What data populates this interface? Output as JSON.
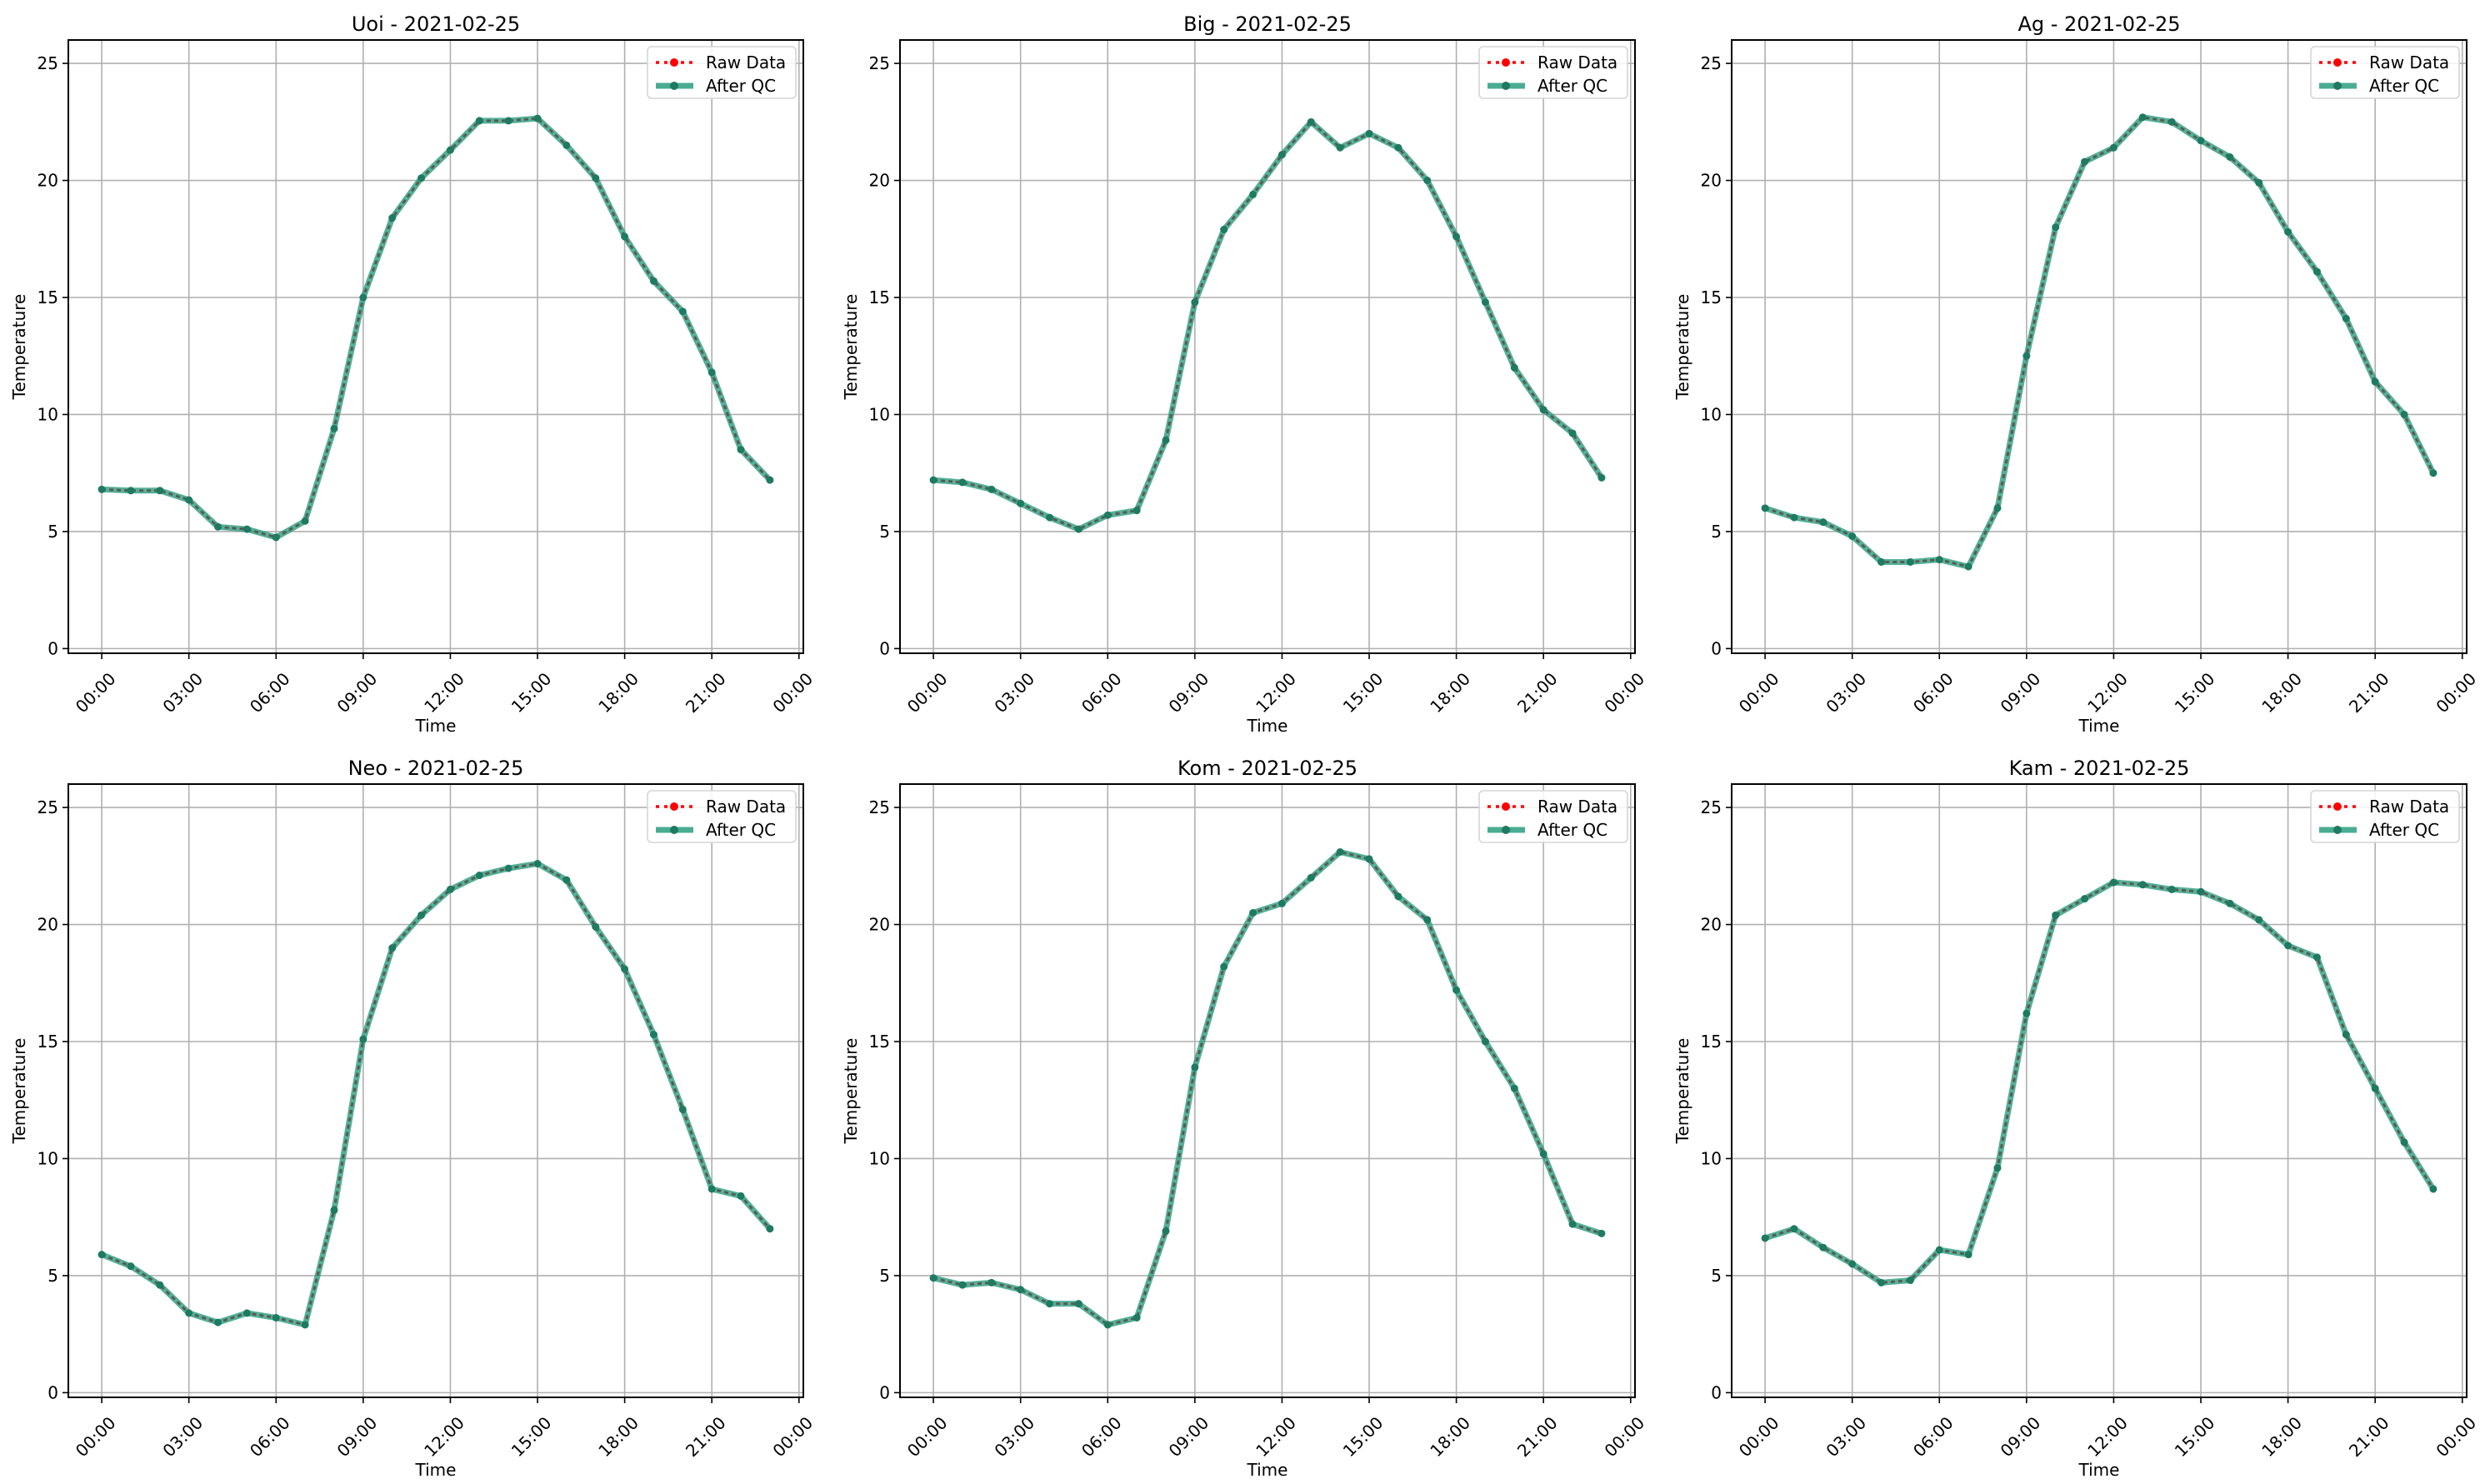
{
  "chart_data": [
    {
      "type": "line",
      "title": "Uoi - 2021-02-25",
      "xlabel": "Time",
      "ylabel": "Temperature",
      "x_hours": [
        0,
        1,
        2,
        3,
        4,
        5,
        6,
        7,
        8,
        9,
        10,
        11,
        12,
        13,
        14,
        15,
        16,
        17,
        18,
        19,
        20,
        21,
        22,
        23
      ],
      "series": [
        {
          "name": "Raw Data",
          "values": [
            6.8,
            6.75,
            6.75,
            6.35,
            5.2,
            5.1,
            4.75,
            5.45,
            9.4,
            15.0,
            18.4,
            20.1,
            21.3,
            22.55,
            22.55,
            22.65,
            21.5,
            20.1,
            17.6,
            15.7,
            14.4,
            11.8,
            8.5,
            7.2
          ]
        },
        {
          "name": "After QC",
          "values": [
            6.8,
            6.75,
            6.75,
            6.35,
            5.2,
            5.1,
            4.75,
            5.45,
            9.4,
            15.0,
            18.4,
            20.1,
            21.3,
            22.55,
            22.55,
            22.65,
            21.5,
            20.1,
            17.6,
            15.7,
            14.4,
            11.8,
            8.5,
            7.2
          ]
        }
      ]
    },
    {
      "type": "line",
      "title": "Big - 2021-02-25",
      "xlabel": "Time",
      "ylabel": "Temperature",
      "x_hours": [
        0,
        1,
        2,
        3,
        4,
        5,
        6,
        7,
        8,
        9,
        10,
        11,
        12,
        13,
        14,
        15,
        16,
        17,
        18,
        19,
        20,
        21,
        22,
        23
      ],
      "series": [
        {
          "name": "Raw Data",
          "values": [
            7.2,
            7.1,
            6.8,
            6.2,
            5.6,
            5.1,
            5.7,
            5.9,
            8.9,
            14.8,
            17.9,
            19.4,
            21.1,
            22.5,
            21.4,
            22.0,
            21.4,
            20.0,
            17.6,
            14.8,
            12.0,
            10.2,
            9.2,
            7.3
          ]
        },
        {
          "name": "After QC",
          "values": [
            7.2,
            7.1,
            6.8,
            6.2,
            5.6,
            5.1,
            5.7,
            5.9,
            8.9,
            14.8,
            17.9,
            19.4,
            21.1,
            22.5,
            21.4,
            22.0,
            21.4,
            20.0,
            17.6,
            14.8,
            12.0,
            10.2,
            9.2,
            7.3
          ]
        }
      ]
    },
    {
      "type": "line",
      "title": "Ag - 2021-02-25",
      "xlabel": "Time",
      "ylabel": "Temperature",
      "x_hours": [
        0,
        1,
        2,
        3,
        4,
        5,
        6,
        7,
        8,
        9,
        10,
        11,
        12,
        13,
        14,
        15,
        16,
        17,
        18,
        19,
        20,
        21,
        22,
        23
      ],
      "series": [
        {
          "name": "Raw Data",
          "values": [
            6.0,
            5.6,
            5.4,
            4.8,
            3.7,
            3.7,
            3.8,
            3.5,
            6.0,
            12.5,
            18.0,
            20.8,
            21.4,
            22.7,
            22.5,
            21.7,
            21.0,
            19.9,
            17.8,
            16.1,
            14.1,
            11.4,
            10.0,
            7.5
          ]
        },
        {
          "name": "After QC",
          "values": [
            6.0,
            5.6,
            5.4,
            4.8,
            3.7,
            3.7,
            3.8,
            3.5,
            6.0,
            12.5,
            18.0,
            20.8,
            21.4,
            22.7,
            22.5,
            21.7,
            21.0,
            19.9,
            17.8,
            16.1,
            14.1,
            11.4,
            10.0,
            7.5
          ]
        }
      ]
    },
    {
      "type": "line",
      "title": "Neo - 2021-02-25",
      "xlabel": "Time",
      "ylabel": "Temperature",
      "x_hours": [
        0,
        1,
        2,
        3,
        4,
        5,
        6,
        7,
        8,
        9,
        10,
        11,
        12,
        13,
        14,
        15,
        16,
        17,
        18,
        19,
        20,
        21,
        22,
        23
      ],
      "series": [
        {
          "name": "Raw Data",
          "values": [
            5.9,
            5.4,
            4.6,
            3.4,
            3.0,
            3.4,
            3.2,
            2.9,
            7.8,
            15.1,
            19.0,
            20.4,
            21.5,
            22.1,
            22.4,
            22.6,
            21.9,
            19.9,
            18.1,
            15.3,
            12.1,
            8.7,
            8.4,
            7.0
          ]
        },
        {
          "name": "After QC",
          "values": [
            5.9,
            5.4,
            4.6,
            3.4,
            3.0,
            3.4,
            3.2,
            2.9,
            7.8,
            15.1,
            19.0,
            20.4,
            21.5,
            22.1,
            22.4,
            22.6,
            21.9,
            19.9,
            18.1,
            15.3,
            12.1,
            8.7,
            8.4,
            7.0
          ]
        }
      ]
    },
    {
      "type": "line",
      "title": "Kom - 2021-02-25",
      "xlabel": "Time",
      "ylabel": "Temperature",
      "x_hours": [
        0,
        1,
        2,
        3,
        4,
        5,
        6,
        7,
        8,
        9,
        10,
        11,
        12,
        13,
        14,
        15,
        16,
        17,
        18,
        19,
        20,
        21,
        22,
        23
      ],
      "series": [
        {
          "name": "Raw Data",
          "values": [
            4.9,
            4.6,
            4.7,
            4.4,
            3.8,
            3.8,
            2.9,
            3.2,
            6.9,
            13.9,
            18.2,
            20.5,
            20.9,
            22.0,
            23.1,
            22.8,
            21.2,
            20.2,
            17.2,
            15.0,
            13.0,
            10.2,
            7.2,
            6.8
          ]
        },
        {
          "name": "After QC",
          "values": [
            4.9,
            4.6,
            4.7,
            4.4,
            3.8,
            3.8,
            2.9,
            3.2,
            6.9,
            13.9,
            18.2,
            20.5,
            20.9,
            22.0,
            23.1,
            22.8,
            21.2,
            20.2,
            17.2,
            15.0,
            13.0,
            10.2,
            7.2,
            6.8
          ]
        }
      ]
    },
    {
      "type": "line",
      "title": "Kam - 2021-02-25",
      "xlabel": "Time",
      "ylabel": "Temperature",
      "x_hours": [
        0,
        1,
        2,
        3,
        4,
        5,
        6,
        7,
        8,
        9,
        10,
        11,
        12,
        13,
        14,
        15,
        16,
        17,
        18,
        19,
        20,
        21,
        22,
        23
      ],
      "series": [
        {
          "name": "Raw Data",
          "values": [
            6.6,
            7.0,
            6.2,
            5.5,
            4.7,
            4.8,
            6.1,
            5.9,
            9.6,
            16.2,
            20.4,
            21.1,
            21.8,
            21.7,
            21.5,
            21.4,
            20.9,
            20.2,
            19.1,
            18.6,
            15.3,
            13.0,
            10.7,
            8.7
          ]
        },
        {
          "name": "After QC",
          "values": [
            6.6,
            7.0,
            6.2,
            5.5,
            4.7,
            4.8,
            6.1,
            5.9,
            9.6,
            16.2,
            20.4,
            21.1,
            21.8,
            21.7,
            21.5,
            21.4,
            20.9,
            20.2,
            19.1,
            18.6,
            15.3,
            13.0,
            10.7,
            8.7
          ]
        }
      ]
    }
  ],
  "axes": {
    "xlim_hours": [
      -1.15,
      24.15
    ],
    "ylim": [
      -0.2,
      26.0
    ],
    "yticks": [
      0,
      5,
      10,
      15,
      20,
      25
    ],
    "xticks_hours": [
      0,
      3,
      6,
      9,
      12,
      15,
      18,
      21,
      24
    ],
    "xtick_labels": [
      "00:00",
      "03:00",
      "06:00",
      "09:00",
      "12:00",
      "15:00",
      "18:00",
      "21:00",
      "00:00"
    ],
    "grid": true,
    "legend_placement": "top-right"
  },
  "legend": {
    "raw_label": "Raw Data",
    "qc_label": "After QC"
  },
  "colors": {
    "raw": "#ff0000",
    "qc": "#2a9d7f",
    "qc_marker": "#1f7a62",
    "grid": "#b0b0b0"
  }
}
